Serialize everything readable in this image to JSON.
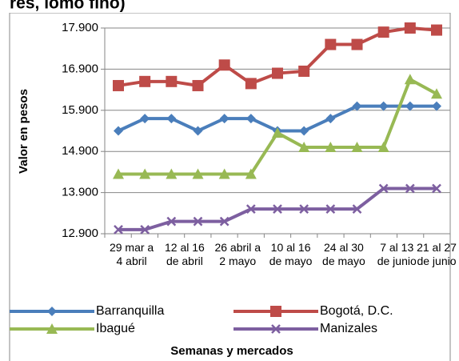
{
  "chart_data": {
    "type": "line",
    "title": "res, lomo fino)",
    "x_label": "Semanas y mercados",
    "y_label": "Valor en pesos",
    "categories": [
      "29 mar a 4 abril",
      null,
      "12 al 16 de abril",
      null,
      "26 abril a 2 mayo",
      null,
      "10 al 16 de mayo",
      null,
      "24 al 30 de mayo",
      null,
      "7 al 13 de junio",
      null,
      "21 al 27 de junio"
    ],
    "ylim": [
      12900,
      17900
    ],
    "yticks": [
      {
        "value": 12900,
        "label": "12.900"
      },
      {
        "value": 13900,
        "label": "13.900"
      },
      {
        "value": 14900,
        "label": "14.900"
      },
      {
        "value": 15900,
        "label": "15.900"
      },
      {
        "value": 16900,
        "label": "16.900"
      },
      {
        "value": 17900,
        "label": "17.900"
      }
    ],
    "grid": true,
    "series": [
      {
        "name": "Barranquilla",
        "color": "#4a7ebb",
        "marker": "diamond",
        "values": [
          15400,
          15700,
          15700,
          15400,
          15700,
          15700,
          15400,
          15400,
          15700,
          16000,
          16000,
          16000,
          16000
        ]
      },
      {
        "name": "Bogotá, D.C.",
        "color": "#be4b48",
        "marker": "square",
        "values": [
          16500,
          16600,
          16600,
          16500,
          17000,
          16550,
          16800,
          16850,
          17500,
          17500,
          17800,
          17900,
          17850
        ]
      },
      {
        "name": "Ibagué",
        "color": "#98b954",
        "marker": "triangle",
        "values": [
          14350,
          14350,
          14350,
          14350,
          14350,
          14350,
          15350,
          15000,
          15000,
          15000,
          15000,
          16650,
          16300
        ]
      },
      {
        "name": "Manizales",
        "color": "#7d5fa0",
        "marker": "x",
        "values": [
          13000,
          13000,
          13200,
          13200,
          13200,
          13500,
          13500,
          13500,
          13500,
          13500,
          14000,
          14000,
          14000
        ]
      }
    ]
  }
}
